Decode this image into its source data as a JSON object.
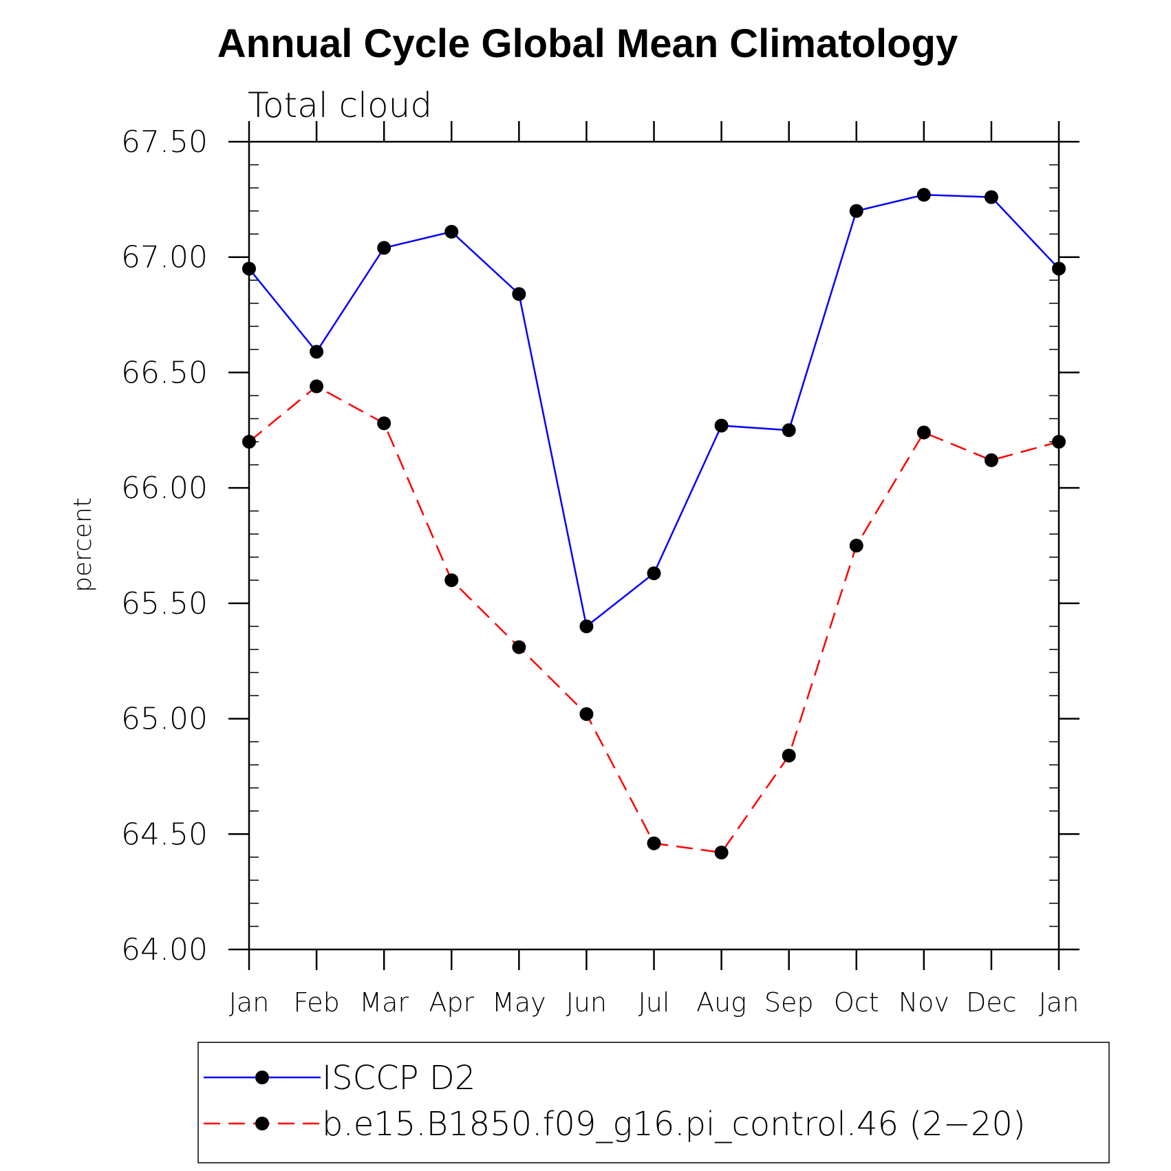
{
  "chart_data": {
    "type": "line",
    "title": "Annual Cycle Global Mean Climatology",
    "subtitle": "Total cloud",
    "ylabel": "percent",
    "xlabel": "",
    "categories": [
      "Jan",
      "Feb",
      "Mar",
      "Apr",
      "May",
      "Jun",
      "Jul",
      "Aug",
      "Sep",
      "Oct",
      "Nov",
      "Dec",
      "Jan"
    ],
    "ylim": [
      64.0,
      67.5
    ],
    "yticks": [
      "64.00",
      "64.50",
      "65.00",
      "65.50",
      "66.00",
      "66.50",
      "67.00",
      "67.50"
    ],
    "grid": false,
    "legend_position": "bottom",
    "series": [
      {
        "name": "ISCCP D2",
        "color": "#0000ff",
        "line_style": "solid",
        "marker": "filled-circle",
        "values": [
          66.95,
          66.59,
          67.04,
          67.11,
          66.84,
          65.4,
          65.63,
          66.27,
          66.25,
          67.2,
          67.27,
          67.26,
          66.95
        ]
      },
      {
        "name": "b.e15.B1850.f09_g16.pi_control.46 (2−20)",
        "color": "#ff0000",
        "line_style": "dashed",
        "marker": "filled-circle",
        "values": [
          66.2,
          66.44,
          66.28,
          65.6,
          65.31,
          65.02,
          64.46,
          64.42,
          64.84,
          65.75,
          66.24,
          66.12,
          66.2
        ]
      }
    ]
  }
}
